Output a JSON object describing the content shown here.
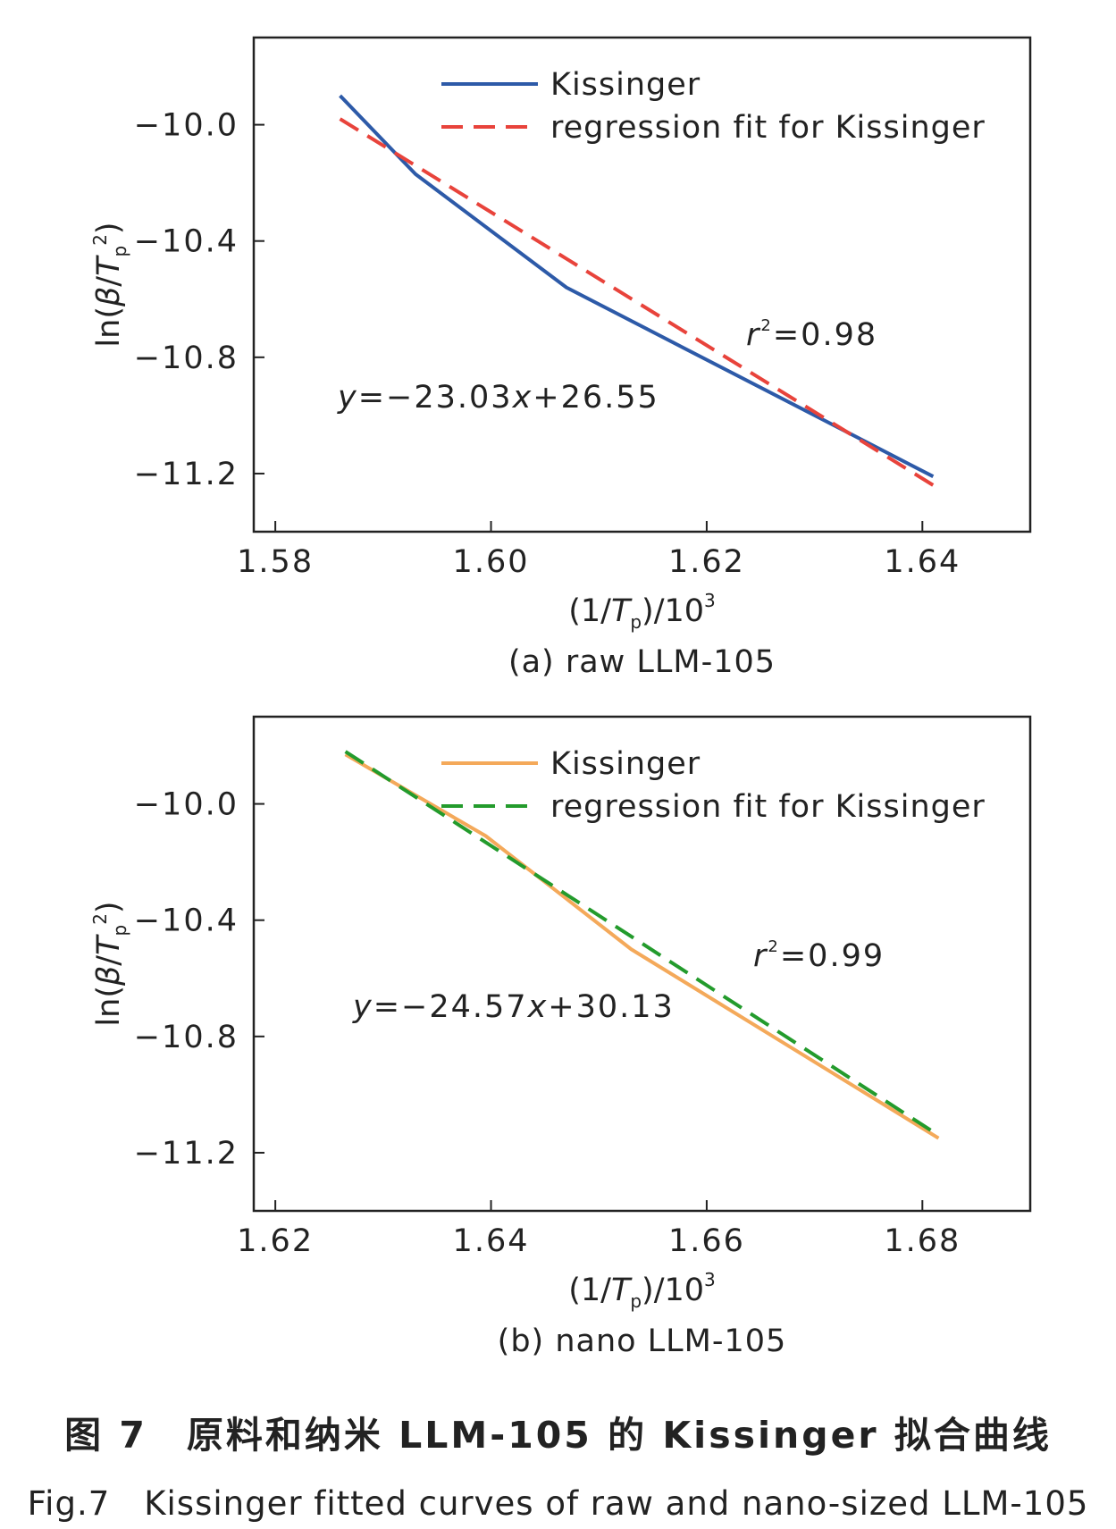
{
  "chart_data": [
    {
      "type": "line",
      "subtitle": "(a) raw LLM-105",
      "xlabel": "(1/T_p)/10^3",
      "ylabel": "ln(β/T_p^2)",
      "xlim": [
        1.578,
        1.65
      ],
      "ylim": [
        -11.4,
        -9.7
      ],
      "xticks": [
        1.58,
        1.6,
        1.62,
        1.64
      ],
      "xtick_labels": [
        "1.58",
        "1.60",
        "1.62",
        "1.64"
      ],
      "yticks": [
        -10.0,
        -10.4,
        -10.8,
        -11.2
      ],
      "ytick_labels": [
        "−10.0",
        "−10.4",
        "−10.8",
        "−11.2"
      ],
      "legend_position": "top-right",
      "grid": false,
      "series": [
        {
          "name": "Kissinger",
          "style": "solid",
          "color": "#2d5aa8",
          "x": [
            1.586,
            1.593,
            1.607,
            1.641
          ],
          "y": [
            -9.9,
            -10.17,
            -10.56,
            -11.21
          ]
        },
        {
          "name": "regression fit for Kissinger",
          "style": "dashed",
          "color": "#e8433b",
          "x": [
            1.586,
            1.641
          ],
          "y": [
            -9.98,
            -11.24
          ]
        }
      ],
      "annotations": {
        "r2_prefix": "r",
        "r2_sup": "2",
        "r2_value": "=0.98",
        "eq_y": "y",
        "eq_mid": "=−23.03",
        "eq_x": "x",
        "eq_end": "+26.55"
      }
    },
    {
      "type": "line",
      "subtitle": "(b) nano LLM-105",
      "xlabel": "(1/T_p)/10^3",
      "ylabel": "ln(β/T_p^2)",
      "xlim": [
        1.618,
        1.69
      ],
      "ylim": [
        -11.4,
        -9.7
      ],
      "xticks": [
        1.62,
        1.64,
        1.66,
        1.68
      ],
      "xtick_labels": [
        "1.62",
        "1.64",
        "1.66",
        "1.68"
      ],
      "yticks": [
        -10.0,
        -10.4,
        -10.8,
        -11.2
      ],
      "ytick_labels": [
        "−10.0",
        "−10.4",
        "−10.8",
        "−11.2"
      ],
      "legend_position": "top-right",
      "grid": false,
      "series": [
        {
          "name": "Kissinger",
          "style": "solid",
          "color": "#f4a95a",
          "x": [
            1.6265,
            1.6395,
            1.653,
            1.6815
          ],
          "y": [
            -9.83,
            -10.11,
            -10.5,
            -11.15
          ]
        },
        {
          "name": "regression fit for Kissinger",
          "style": "dashed",
          "color": "#239b2c",
          "x": [
            1.6265,
            1.6815
          ],
          "y": [
            -9.82,
            -11.14
          ]
        }
      ],
      "annotations": {
        "r2_prefix": "r",
        "r2_sup": "2",
        "r2_value": "=0.99",
        "eq_y": "y",
        "eq_mid": "=−24.57",
        "eq_x": "x",
        "eq_end": "+30.13"
      }
    }
  ],
  "caption": {
    "cn": "图 7　原料和纳米 LLM-105 的 Kissinger 拟合曲线",
    "en": "Fig.7　Kissinger fitted curves of raw and nano-sized LLM-105"
  },
  "colors": {
    "axis": "#222222",
    "text": "#222222"
  }
}
